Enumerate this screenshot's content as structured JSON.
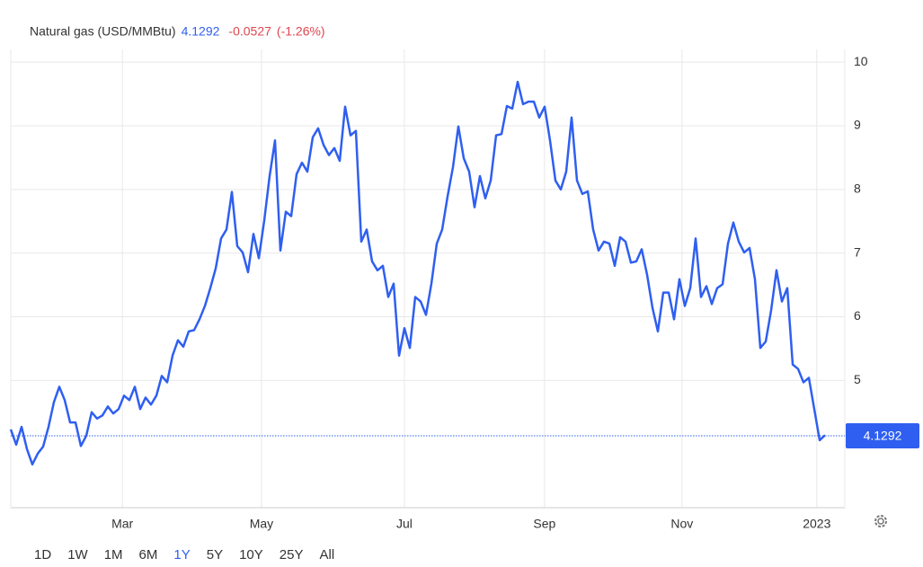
{
  "chart_data": {
    "type": "line",
    "title": "Natural gas (USD/MMBtu)",
    "last_value": 4.1292,
    "change": -0.0527,
    "change_pct": "(-1.26%)",
    "color": "#2f5ff0",
    "up_color": "#2f5ff0",
    "down_color": "#e0464e",
    "grid": true,
    "xlim": [
      0,
      154.7
    ],
    "xticks": [
      {
        "value": 20.7,
        "label": "Mar"
      },
      {
        "value": 46.5,
        "label": "May"
      },
      {
        "value": 73,
        "label": "Jul"
      },
      {
        "value": 99,
        "label": "Sep"
      },
      {
        "value": 124.5,
        "label": "Nov"
      },
      {
        "value": 149.5,
        "label": "2023"
      }
    ],
    "ylim": [
      3,
      10.2
    ],
    "yticks": [
      5,
      6,
      7,
      8,
      9,
      10
    ],
    "values": [
      4.23,
      3.99,
      4.27,
      3.92,
      3.68,
      3.85,
      3.96,
      4.27,
      4.66,
      4.9,
      4.69,
      4.34,
      4.34,
      3.97,
      4.13,
      4.5,
      4.4,
      4.45,
      4.59,
      4.48,
      4.55,
      4.76,
      4.69,
      4.9,
      4.55,
      4.73,
      4.62,
      4.76,
      5.07,
      4.97,
      5.39,
      5.63,
      5.53,
      5.77,
      5.79,
      5.96,
      6.17,
      6.45,
      6.76,
      7.23,
      7.37,
      7.96,
      7.11,
      7.01,
      6.7,
      7.3,
      6.92,
      7.51,
      8.21,
      8.77,
      7.04,
      7.65,
      7.58,
      8.24,
      8.42,
      8.28,
      8.82,
      8.96,
      8.7,
      8.54,
      8.65,
      8.45,
      9.3,
      8.85,
      8.92,
      7.18,
      7.37,
      6.87,
      6.73,
      6.8,
      6.31,
      6.52,
      5.39,
      5.82,
      5.51,
      6.31,
      6.24,
      6.03,
      6.52,
      7.15,
      7.37,
      7.89,
      8.35,
      8.99,
      8.49,
      8.28,
      7.72,
      8.21,
      7.86,
      8.14,
      8.85,
      8.87,
      9.31,
      9.27,
      9.69,
      9.34,
      9.38,
      9.38,
      9.13,
      9.3,
      8.77,
      8.14,
      8.0,
      8.28,
      9.13,
      8.14,
      7.93,
      7.97,
      7.37,
      7.04,
      7.18,
      7.15,
      6.8,
      7.25,
      7.18,
      6.85,
      6.87,
      7.06,
      6.66,
      6.14,
      5.77,
      6.38,
      6.38,
      5.96,
      6.59,
      6.17,
      6.45,
      7.23,
      6.31,
      6.48,
      6.2,
      6.45,
      6.51,
      7.15,
      7.48,
      7.18,
      7.01,
      7.08,
      6.59,
      5.51,
      5.61,
      6.1,
      6.73,
      6.24,
      6.45,
      5.25,
      5.18,
      4.97,
      5.04,
      4.55,
      4.06,
      4.14
    ],
    "range_buttons": [
      "1D",
      "1W",
      "1M",
      "6M",
      "1Y",
      "5Y",
      "10Y",
      "25Y",
      "All"
    ],
    "selected_range_index": 4
  }
}
